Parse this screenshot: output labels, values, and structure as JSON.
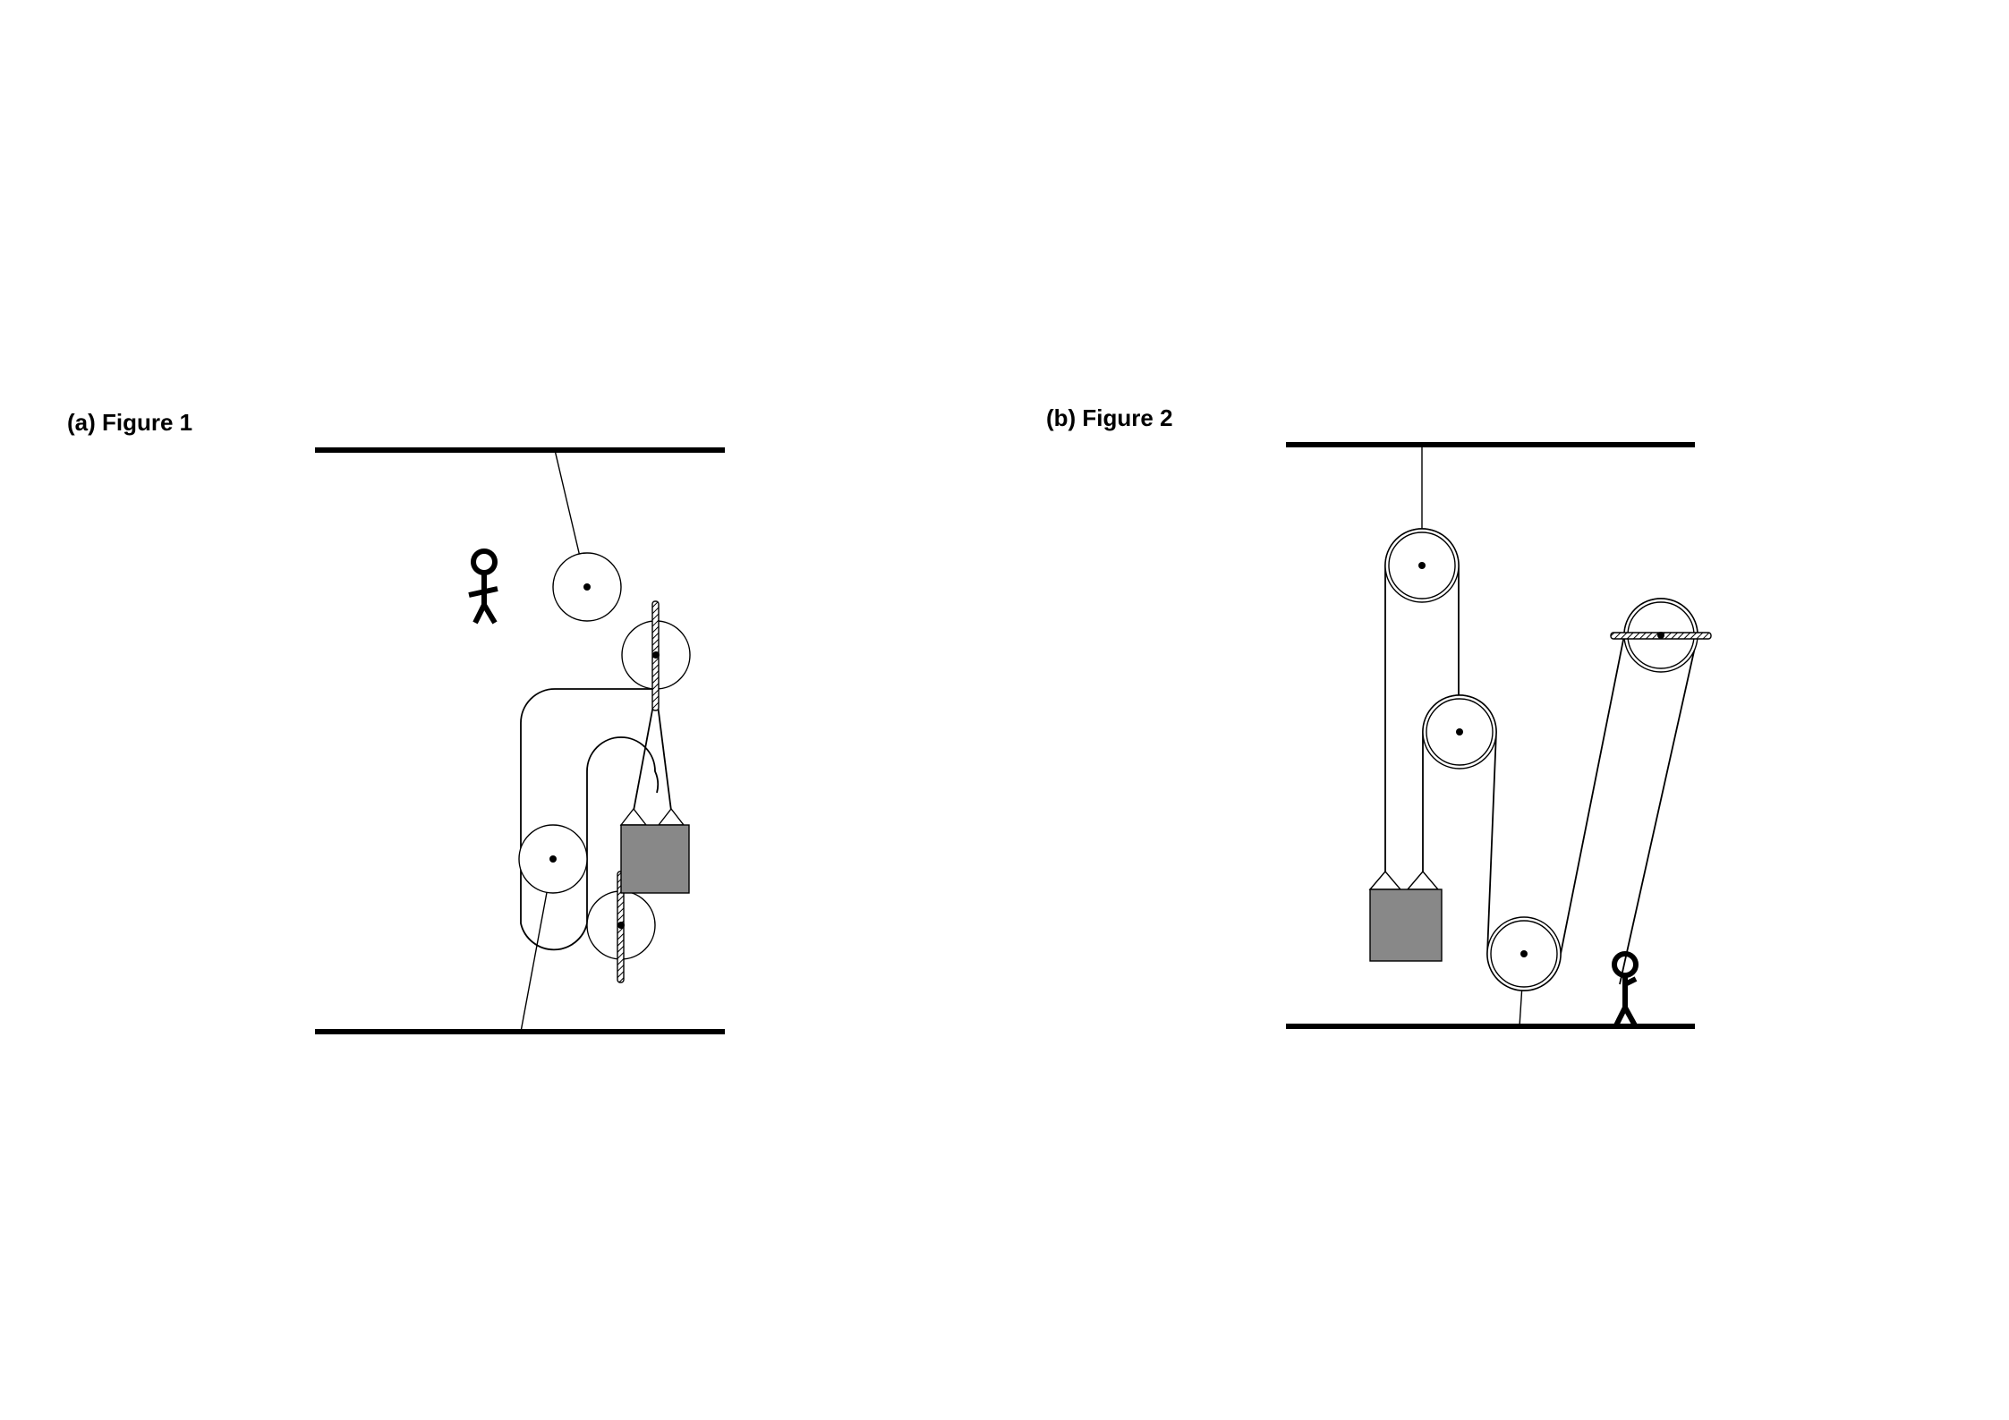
{
  "figure1": {
    "caption": "(a) Figure 1",
    "components": {
      "ceiling": "ceiling-surface",
      "floor": "floor-surface",
      "person": "stick-figure",
      "block": "hanging-block",
      "pulleys": [
        "pulley",
        "pulley-with-bar",
        "pulley",
        "pulley-with-bar"
      ]
    }
  },
  "figure2": {
    "caption": "(b) Figure 2",
    "components": {
      "ceiling": "ceiling-surface",
      "floor": "floor-surface",
      "person": "stick-figure",
      "block": "hanging-block",
      "pulleys": [
        "double-rim-pulley",
        "double-rim-pulley",
        "double-rim-pulley",
        "double-rim-pulley-with-bar"
      ]
    }
  },
  "colors": {
    "background": "#ffffff",
    "ink": "#000000",
    "block_fill": "#888888"
  }
}
